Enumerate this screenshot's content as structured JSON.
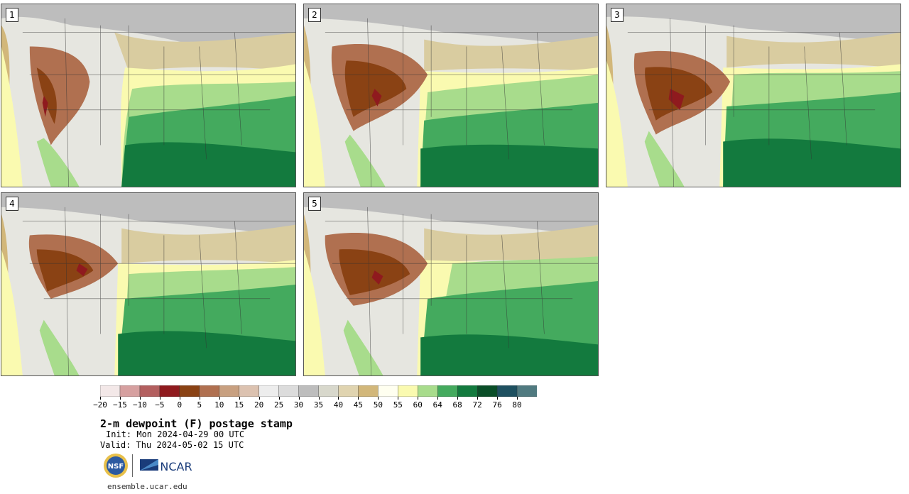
{
  "panels": [
    {
      "label": "1"
    },
    {
      "label": "2"
    },
    {
      "label": "3"
    },
    {
      "label": "4"
    },
    {
      "label": "5"
    }
  ],
  "colorbar": {
    "tick_labels": [
      "−20",
      "−15",
      "−10",
      "−5",
      "0",
      "5",
      "10",
      "15",
      "20",
      "25",
      "30",
      "35",
      "40",
      "45",
      "50",
      "55",
      "60",
      "64",
      "68",
      "72",
      "76",
      "80"
    ],
    "colors": [
      "#f3e8e8",
      "#d6a0a0",
      "#b35f5f",
      "#8f1a1e",
      "#8a4214",
      "#b07050",
      "#c8a080",
      "#dcc2b0",
      "#ededed",
      "#dcdcdc",
      "#bdbdbd",
      "#d8d8cc",
      "#e0d4b0",
      "#d2b77a",
      "#fffff0",
      "#fafab0",
      "#a8dc8c",
      "#44aa5e",
      "#137a3e",
      "#0a4e28",
      "#1e5060",
      "#507a80"
    ]
  },
  "title": "2-m dewpoint (F) postage stamp",
  "init": "Init: Mon 2024-04-29 00 UTC",
  "valid": "Valid: Thu 2024-05-02 15 UTC",
  "logos": {
    "nsf": "NSF",
    "ncar": "NCAR"
  },
  "website": "ensemble.ucar.edu"
}
